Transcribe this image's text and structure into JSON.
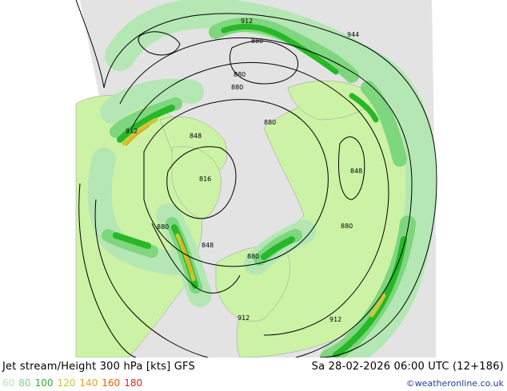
{
  "title": "Jet stream/Height 300 hPa [kts] GFS",
  "datetime": "Sa 28-02-2026 06:00 UTC (12+186)",
  "credit": "©weatheronline.co.uk",
  "legend": [
    {
      "label": "60",
      "color": "#b4e7b4"
    },
    {
      "label": "80",
      "color": "#7ed67e"
    },
    {
      "label": "100",
      "color": "#27b827"
    },
    {
      "label": "120",
      "color": "#c8c837"
    },
    {
      "label": "140",
      "color": "#e8a41b"
    },
    {
      "label": "160",
      "color": "#ff5500"
    },
    {
      "label": "180",
      "color": "#e81e1e"
    }
  ],
  "contour_labels": [
    "912",
    "944",
    "880",
    "880",
    "880",
    "880",
    "912",
    "848",
    "848",
    "816",
    "880",
    "880",
    "848",
    "880",
    "912",
    "912"
  ],
  "colors": {
    "land": "#ccf2a6",
    "sea": "#e3e3e3",
    "jet_60": "#b4e7b4",
    "jet_80": "#7ed67e",
    "jet_100": "#27b827",
    "jet_120": "#c8c837",
    "jet_140": "#e8a41b"
  }
}
